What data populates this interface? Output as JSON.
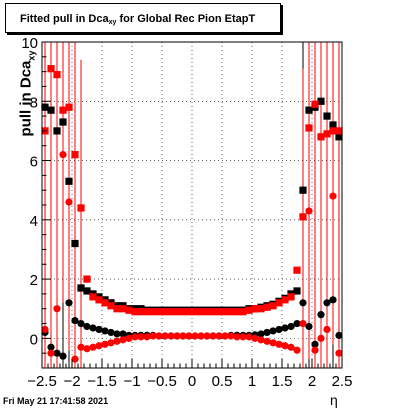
{
  "title": {
    "main": "Fitted pull in Dca",
    "sub": "xy",
    "rest": " for Global Rec Pion EtapT"
  },
  "ylabel": {
    "main": "pull in Dca",
    "sub": "xy"
  },
  "xlabel": "η",
  "footer": "Fri May 21 17:41:58 2021",
  "colors": {
    "black_series": "#000000",
    "red_series": "#ff0000",
    "grid": "#000000"
  },
  "chart_data": {
    "type": "scatter",
    "xlim": [
      -2.5,
      2.5
    ],
    "ylim": [
      -1.0,
      10.0
    ],
    "grid": true,
    "xticks": [
      "−2.5",
      "−2",
      "−1.5",
      "−1",
      "−0.5",
      "0",
      "0.5",
      "1",
      "1.5",
      "2",
      "2.5"
    ],
    "yticks": [
      "0",
      "2",
      "4",
      "6",
      "8",
      "10"
    ],
    "series": [
      {
        "marker": "square",
        "color": "#000000",
        "x": [
          -2.45,
          -2.35,
          -2.25,
          -2.15,
          -2.05,
          -1.95,
          -1.85,
          -1.75,
          -1.65,
          -1.55,
          -1.45,
          -1.35,
          -1.25,
          -1.15,
          -1.05,
          -0.95,
          -0.85,
          -0.75,
          -0.65,
          -0.55,
          -0.45,
          -0.35,
          -0.25,
          -0.15,
          -0.05,
          0.05,
          0.15,
          0.25,
          0.35,
          0.45,
          0.55,
          0.65,
          0.75,
          0.85,
          0.95,
          1.05,
          1.15,
          1.25,
          1.35,
          1.45,
          1.55,
          1.65,
          1.75,
          1.85,
          1.95,
          2.05,
          2.15,
          2.25,
          2.35,
          2.45
        ],
        "y": [
          7.8,
          7.7,
          7.0,
          7.3,
          5.3,
          3.2,
          1.7,
          1.6,
          1.5,
          1.4,
          1.3,
          1.2,
          1.1,
          1.1,
          1.0,
          1.0,
          1.0,
          0.95,
          0.95,
          0.95,
          0.95,
          0.95,
          0.95,
          0.95,
          0.95,
          0.95,
          0.95,
          0.95,
          0.95,
          0.95,
          0.95,
          0.95,
          0.95,
          0.95,
          1.0,
          1.0,
          1.05,
          1.1,
          1.15,
          1.25,
          1.35,
          1.5,
          1.6,
          5.0,
          7.7,
          7.8,
          8.0,
          7.5,
          7.2,
          6.8
        ]
      },
      {
        "marker": "circle",
        "color": "#000000",
        "x": [
          -2.45,
          -2.35,
          -2.25,
          -2.15,
          -2.05,
          -1.95,
          -1.85,
          -1.75,
          -1.65,
          -1.55,
          -1.45,
          -1.35,
          -1.25,
          -1.15,
          -1.05,
          -0.95,
          -0.85,
          -0.75,
          -0.65,
          -0.55,
          -0.45,
          -0.35,
          -0.25,
          -0.15,
          -0.05,
          0.05,
          0.15,
          0.25,
          0.35,
          0.45,
          0.55,
          0.65,
          0.75,
          0.85,
          0.95,
          1.05,
          1.15,
          1.25,
          1.35,
          1.45,
          1.55,
          1.65,
          1.75,
          1.85,
          1.95,
          2.05,
          2.15,
          2.25,
          2.35,
          2.45
        ],
        "y": [
          0.2,
          -0.3,
          -0.5,
          -0.6,
          1.2,
          0.6,
          0.5,
          0.4,
          0.35,
          0.3,
          0.25,
          0.2,
          0.15,
          0.15,
          0.1,
          0.1,
          0.1,
          0.1,
          0.1,
          0.08,
          0.08,
          0.08,
          0.08,
          0.08,
          0.08,
          0.08,
          0.08,
          0.08,
          0.08,
          0.08,
          0.08,
          0.1,
          0.1,
          0.1,
          0.1,
          0.12,
          0.15,
          0.2,
          0.25,
          0.3,
          0.35,
          0.4,
          0.5,
          1.2,
          0.4,
          -0.2,
          0.8,
          1.2,
          1.3,
          0.1
        ]
      },
      {
        "marker": "square",
        "color": "#ff0000",
        "x": [
          -2.45,
          -2.35,
          -2.25,
          -2.15,
          -2.05,
          -1.95,
          -1.85,
          -1.75,
          -1.65,
          -1.55,
          -1.45,
          -1.35,
          -1.25,
          -1.15,
          -1.05,
          -0.95,
          -0.85,
          -0.75,
          -0.65,
          -0.55,
          -0.45,
          -0.35,
          -0.25,
          -0.15,
          -0.05,
          0.05,
          0.15,
          0.25,
          0.35,
          0.45,
          0.55,
          0.65,
          0.75,
          0.85,
          0.95,
          1.05,
          1.15,
          1.25,
          1.35,
          1.45,
          1.55,
          1.65,
          1.75,
          1.85,
          1.95,
          2.05,
          2.15,
          2.25,
          2.35,
          2.45
        ],
        "y": [
          7.0,
          9.1,
          8.9,
          7.7,
          7.8,
          6.2,
          4.4,
          2.0,
          1.4,
          1.3,
          1.2,
          1.1,
          1.0,
          1.0,
          0.95,
          0.9,
          0.9,
          0.9,
          0.9,
          0.9,
          0.9,
          0.9,
          0.9,
          0.9,
          0.9,
          0.9,
          0.9,
          0.9,
          0.9,
          0.9,
          0.9,
          0.9,
          0.9,
          0.9,
          0.95,
          1.0,
          1.0,
          1.05,
          1.1,
          1.2,
          1.3,
          1.4,
          2.3,
          4.1,
          7.1,
          7.9,
          6.8,
          6.9,
          7.0,
          7.0
        ]
      },
      {
        "marker": "circle",
        "color": "#ff0000",
        "x": [
          -2.45,
          -2.35,
          -2.25,
          -2.15,
          -2.05,
          -1.95,
          -1.85,
          -1.75,
          -1.65,
          -1.55,
          -1.45,
          -1.35,
          -1.25,
          -1.15,
          -1.05,
          -0.95,
          -0.85,
          -0.75,
          -0.65,
          -0.55,
          -0.45,
          -0.35,
          -0.25,
          -0.15,
          -0.05,
          0.05,
          0.15,
          0.25,
          0.35,
          0.45,
          0.55,
          0.65,
          0.75,
          0.85,
          0.95,
          1.05,
          1.15,
          1.25,
          1.35,
          1.45,
          1.55,
          1.65,
          1.75,
          1.85,
          1.95,
          2.05,
          2.15,
          2.25,
          2.35,
          2.45
        ],
        "y": [
          0.3,
          -0.5,
          1.0,
          6.2,
          4.6,
          -0.7,
          -0.3,
          -0.35,
          -0.3,
          -0.25,
          -0.2,
          -0.15,
          -0.1,
          -0.05,
          0.0,
          0.05,
          0.05,
          0.05,
          0.08,
          0.08,
          0.08,
          0.08,
          0.08,
          0.08,
          0.08,
          0.08,
          0.08,
          0.08,
          0.08,
          0.08,
          0.08,
          0.08,
          0.05,
          0.05,
          0.05,
          0.0,
          -0.05,
          -0.1,
          -0.15,
          -0.2,
          -0.25,
          -0.3,
          -0.4,
          0.5,
          4.3,
          -0.4,
          0.0,
          0.3,
          4.8,
          -0.5
        ]
      }
    ]
  }
}
